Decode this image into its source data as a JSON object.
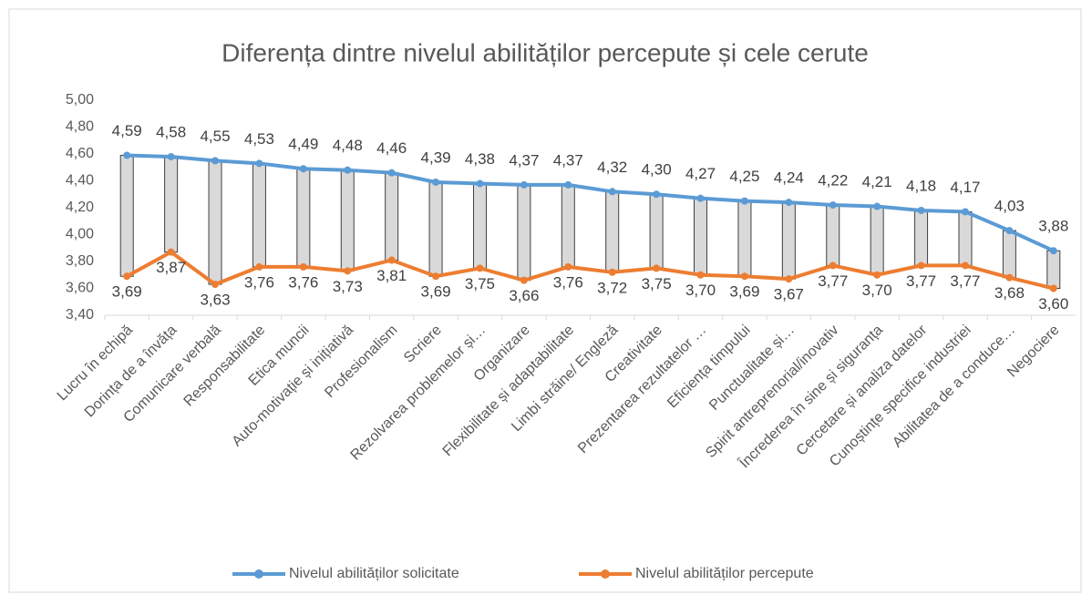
{
  "chart_data": {
    "type": "line",
    "title": "Diferența dintre nivelul abilităților percepute și cele cerute",
    "categories": [
      "Lucru în echipă",
      "Dorința de a învăța",
      "Comunicare verbală",
      "Responsabilitate",
      "Etica muncii",
      "Auto-motivație și inițiativă",
      "Profesionalism",
      "Scriere",
      "Rezolvarea problemelor și…",
      "Organizare",
      "Flexibilitate și adaptabilitate",
      "Limbi străine/ Engleză",
      "Creativitate",
      "Prezentarea rezultatelor …",
      "Eficiența timpului",
      "Punctualitate și…",
      "Spirit antreprenorial/inovativ",
      "Încrederea în sine și siguranța",
      "Cercetare și analiza datelor",
      "Cunoștințe specifice industriei",
      "Abilitatea de a conduce…",
      "Negociere"
    ],
    "series": [
      {
        "name": "Nivelul abilităților solicitate",
        "color": "#5b9bd5",
        "values": [
          4.59,
          4.58,
          4.55,
          4.53,
          4.49,
          4.48,
          4.46,
          4.39,
          4.38,
          4.37,
          4.37,
          4.32,
          4.3,
          4.27,
          4.25,
          4.24,
          4.22,
          4.21,
          4.18,
          4.17,
          4.03,
          3.88
        ],
        "value_labels": [
          "4,59",
          "4,58",
          "4,55",
          "4,53",
          "4,49",
          "4,48",
          "4,46",
          "4,39",
          "4,38",
          "4,37",
          "4,37",
          "4,32",
          "4,30",
          "4,27",
          "4,25",
          "4,24",
          "4,22",
          "4,21",
          "4,18",
          "4,17",
          "4,03",
          "3,88"
        ]
      },
      {
        "name": "Nivelul abilităților percepute",
        "color": "#ed7d31",
        "values": [
          3.69,
          3.87,
          3.63,
          3.76,
          3.76,
          3.73,
          3.81,
          3.69,
          3.75,
          3.66,
          3.76,
          3.72,
          3.75,
          3.7,
          3.69,
          3.67,
          3.77,
          3.7,
          3.77,
          3.77,
          3.68,
          3.6
        ],
        "value_labels": [
          "3,69",
          "3,87",
          "3,63",
          "3,76",
          "3,76",
          "3,73",
          "3,81",
          "3,69",
          "3,75",
          "3,66",
          "3,76",
          "3,72",
          "3,75",
          "3,70",
          "3,69",
          "3,67",
          "3,77",
          "3,70",
          "3,77",
          "3,77",
          "3,68",
          "3,60"
        ]
      }
    ],
    "ylim": [
      3.4,
      5.0
    ],
    "yticks": [
      {
        "value": 3.4,
        "label": "3,40"
      },
      {
        "value": 3.6,
        "label": "3,60"
      },
      {
        "value": 3.8,
        "label": "3,80"
      },
      {
        "value": 4.0,
        "label": "4,00"
      },
      {
        "value": 4.2,
        "label": "4,20"
      },
      {
        "value": 4.4,
        "label": "4,40"
      },
      {
        "value": 4.6,
        "label": "4,60"
      },
      {
        "value": 4.8,
        "label": "4,80"
      },
      {
        "value": 5.0,
        "label": "5,00"
      }
    ],
    "grid": false,
    "updown_bars": true,
    "updown_bar_color": "#d9d9d9",
    "legend": "bottom"
  }
}
